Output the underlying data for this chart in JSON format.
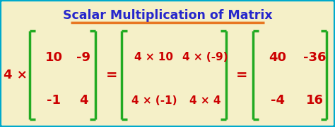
{
  "title": "Scalar Multiplication of Matrix",
  "title_color": "#2626cc",
  "title_underline_color": "#e87722",
  "background_color": "#f5f0c8",
  "border_color": "#00aacc",
  "matrix_bracket_color": "#22aa22",
  "text_color_red": "#cc0000",
  "scalar_text": "4 ×",
  "matrix1": [
    [
      "10",
      "-9"
    ],
    [
      "-1",
      "4"
    ]
  ],
  "matrix2": [
    [
      "4 × 10",
      "4 × (-9)"
    ],
    [
      "4 × (-1)",
      "4 × 4"
    ]
  ],
  "matrix3": [
    [
      "40",
      "-36"
    ],
    [
      "-4",
      "16"
    ]
  ],
  "figsize": [
    4.74,
    1.81
  ],
  "dpi": 100
}
